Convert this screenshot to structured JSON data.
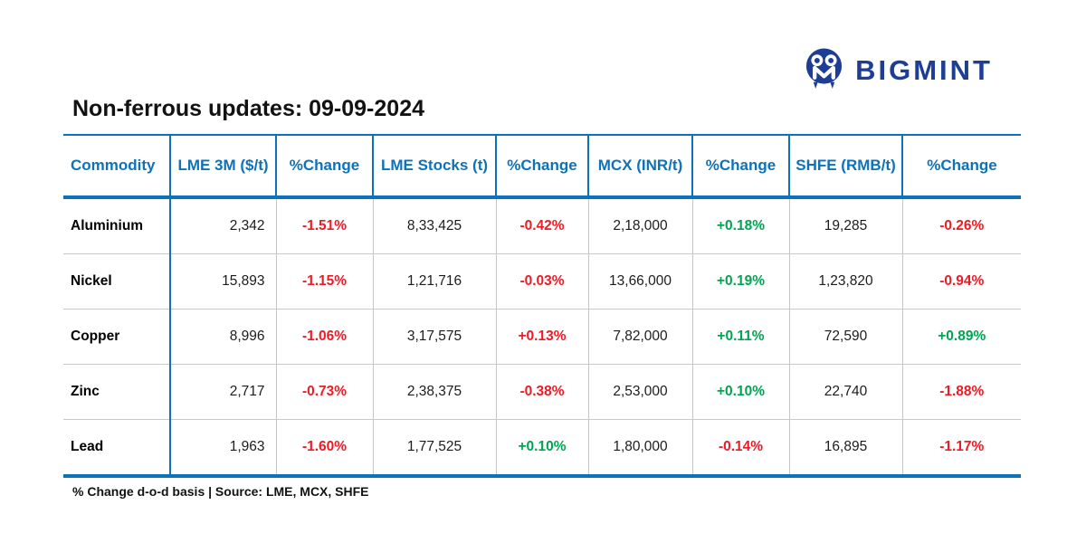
{
  "brand": {
    "name": "BIGMINT",
    "logo_icon": "owl-m-circle-icon",
    "navy": "#1d3e94"
  },
  "title": "Non-ferrous updates: 09-09-2024",
  "footer": {
    "note": "% Change d-o-d basis | Source: LME, MCX, SHFE"
  },
  "colors": {
    "blue": "#0d72b8",
    "navy": "#1d3e94",
    "red": "#ee1b24",
    "green": "#00a550"
  },
  "table": {
    "columns": [
      {
        "label": "Commodity",
        "body_align": "left"
      },
      {
        "label": "LME 3M ($/t)",
        "body_align": "right"
      },
      {
        "label": "%Change",
        "body_align": "center"
      },
      {
        "label": "LME Stocks (t)",
        "body_align": "center"
      },
      {
        "label": "%Change",
        "body_align": "center"
      },
      {
        "label": "MCX (INR/t)",
        "body_align": "center"
      },
      {
        "label": "%Change",
        "body_align": "center"
      },
      {
        "label": "SHFE (RMB/t)",
        "body_align": "center"
      },
      {
        "label": "%Change",
        "body_align": "center"
      }
    ],
    "rows": [
      {
        "cells": [
          {
            "v": "Aluminium"
          },
          {
            "v": "2,342"
          },
          {
            "v": "-1.51%",
            "color": "red"
          },
          {
            "v": "8,33,425"
          },
          {
            "v": "-0.42%",
            "color": "red"
          },
          {
            "v": "2,18,000"
          },
          {
            "v": "+0.18%",
            "color": "green"
          },
          {
            "v": "19,285"
          },
          {
            "v": "-0.26%",
            "color": "red"
          }
        ]
      },
      {
        "cells": [
          {
            "v": "Nickel"
          },
          {
            "v": "15,893"
          },
          {
            "v": "-1.15%",
            "color": "red"
          },
          {
            "v": "1,21,716"
          },
          {
            "v": "-0.03%",
            "color": "red"
          },
          {
            "v": "13,66,000"
          },
          {
            "v": "+0.19%",
            "color": "green"
          },
          {
            "v": "1,23,820"
          },
          {
            "v": "-0.94%",
            "color": "red"
          }
        ]
      },
      {
        "cells": [
          {
            "v": "Copper"
          },
          {
            "v": "8,996"
          },
          {
            "v": "-1.06%",
            "color": "red"
          },
          {
            "v": "3,17,575"
          },
          {
            "v": "+0.13%",
            "color": "red"
          },
          {
            "v": "7,82,000"
          },
          {
            "v": "+0.11%",
            "color": "green"
          },
          {
            "v": "72,590"
          },
          {
            "v": "+0.89%",
            "color": "green"
          }
        ]
      },
      {
        "cells": [
          {
            "v": "Zinc"
          },
          {
            "v": "2,717"
          },
          {
            "v": "-0.73%",
            "color": "red"
          },
          {
            "v": "2,38,375"
          },
          {
            "v": "-0.38%",
            "color": "red"
          },
          {
            "v": "2,53,000"
          },
          {
            "v": "+0.10%",
            "color": "green"
          },
          {
            "v": "22,740"
          },
          {
            "v": "-1.88%",
            "color": "red"
          }
        ]
      },
      {
        "cells": [
          {
            "v": "Lead"
          },
          {
            "v": "1,963"
          },
          {
            "v": "-1.60%",
            "color": "red"
          },
          {
            "v": "1,77,525"
          },
          {
            "v": "+0.10%",
            "color": "green"
          },
          {
            "v": "1,80,000"
          },
          {
            "v": "-0.14%",
            "color": "red"
          },
          {
            "v": "16,895"
          },
          {
            "v": "-1.17%",
            "color": "red"
          }
        ]
      }
    ]
  },
  "chart_data": {
    "type": "table",
    "title": "Non-ferrous updates: 09-09-2024",
    "columns": [
      "Commodity",
      "LME 3M ($/t)",
      "%Change",
      "LME Stocks (t)",
      "%Change",
      "MCX (INR/t)",
      "%Change",
      "SHFE (RMB/t)",
      "%Change"
    ],
    "rows": [
      [
        "Aluminium",
        2342,
        -1.51,
        833425,
        -0.42,
        218000,
        0.18,
        19285,
        -0.26
      ],
      [
        "Nickel",
        15893,
        -1.15,
        121716,
        -0.03,
        1366000,
        0.19,
        123820,
        -0.94
      ],
      [
        "Copper",
        8996,
        -1.06,
        317575,
        0.13,
        782000,
        0.11,
        72590,
        0.89
      ],
      [
        "Zinc",
        2717,
        -0.73,
        238375,
        -0.38,
        253000,
        0.1,
        22740,
        -1.88
      ],
      [
        "Lead",
        1963,
        -1.6,
        177525,
        0.1,
        180000,
        -0.14,
        16895,
        -1.17
      ]
    ],
    "note": "% Change d-o-d basis | Source: LME, MCX, SHFE"
  }
}
